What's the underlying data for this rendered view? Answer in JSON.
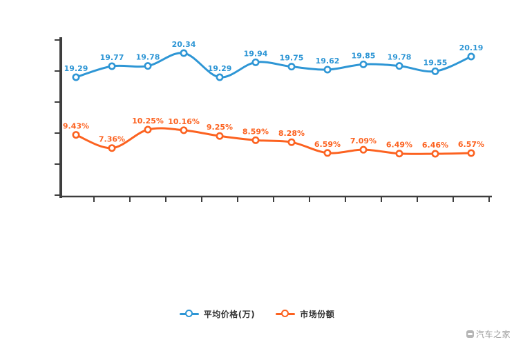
{
  "chart": {
    "legend": {
      "items": [
        {
          "label": "平均价格(万)"
        },
        {
          "label": "市场份额"
        }
      ]
    },
    "watermark": "汽车之家"
  },
  "chart_data": {
    "type": "line",
    "title": "",
    "xlabel": "",
    "ylabel": "",
    "x_axis": {
      "tick_count": 12,
      "labels_visible": false
    },
    "grid": false,
    "legend_position": "bottom",
    "colors": {
      "series1": "#2e96d5",
      "series2": "#fc6220",
      "axis": "#3d3d3d"
    },
    "series": [
      {
        "name": "平均价格(万)",
        "color": "#2e96d5",
        "unit": "万",
        "values": [
          19.29,
          19.77,
          19.78,
          20.34,
          19.29,
          19.94,
          19.75,
          19.62,
          19.85,
          19.78,
          19.55,
          20.19
        ],
        "labels": [
          "19.29",
          "19.77",
          "19.78",
          "20.34",
          "19.29",
          "19.94",
          "19.75",
          "19.62",
          "19.85",
          "19.78",
          "19.55",
          "20.19"
        ]
      },
      {
        "name": "市场份额",
        "color": "#fc6220",
        "unit": "%",
        "values": [
          9.43,
          7.36,
          10.25,
          10.16,
          9.25,
          8.59,
          8.28,
          6.59,
          7.09,
          6.49,
          6.46,
          6.57
        ],
        "labels": [
          "9.43%",
          "7.36%",
          "10.25%",
          "10.16%",
          "9.25%",
          "8.59%",
          "8.28%",
          "6.59%",
          "7.09%",
          "6.49%",
          "6.46%",
          "6.57%"
        ]
      }
    ]
  }
}
